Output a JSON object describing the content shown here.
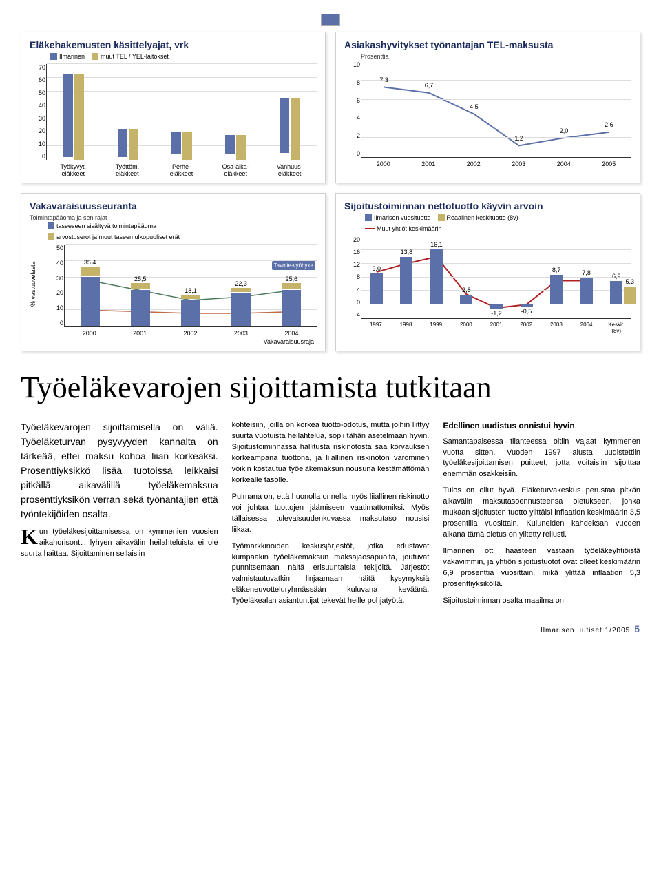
{
  "colors": {
    "primary": "#5b6fa8",
    "secondary": "#c5b36a",
    "accent1": "#c06a4a",
    "accent2": "#4a7a5a",
    "red": "#b02020",
    "grid": "#dddddd",
    "axis": "#333333",
    "title": "#1a2a5c"
  },
  "chart1": {
    "title": "Eläkehakemusten käsittelyajat, vrk",
    "type": "bar",
    "legend": [
      {
        "label": "Ilmarinen",
        "color": "#5b6fa8"
      },
      {
        "label": "muut TEL / YEL-laitokset",
        "color": "#c5b36a"
      }
    ],
    "ylim": [
      0,
      70
    ],
    "ytick_step": 10,
    "categories": [
      "Työkyvyt.\neläkkeet",
      "Työttöm.\neläkkeet",
      "Perhe-\neläkkeet",
      "Osa-aika-\neläkkeet",
      "Vanhuus-\neläkkeet"
    ],
    "series": [
      {
        "color": "#5b6fa8",
        "values": [
          60,
          20,
          16,
          14,
          40
        ]
      },
      {
        "color": "#c5b36a",
        "values": [
          62,
          22,
          20,
          18,
          45
        ]
      }
    ]
  },
  "chart2": {
    "title": "Asiakashyvitykset työnantajan TEL-maksusta",
    "type": "line",
    "ylabel": "Prosenttia",
    "ylim": [
      0,
      10
    ],
    "ytick_step": 2,
    "x": [
      "2000",
      "2001",
      "2002",
      "2003",
      "2004",
      "2005"
    ],
    "values": [
      7.3,
      6.7,
      4.5,
      1.2,
      2.0,
      2.6
    ],
    "line_color": "#5b6fa8",
    "value_labels": [
      "7,3",
      "6,7",
      "4,5",
      "1,2",
      "2,0",
      "2,6"
    ]
  },
  "chart3": {
    "title": "Vakavaraisuusseuranta",
    "subtitle": "Toimintapääoma ja sen rajat",
    "type": "bar+line",
    "ylabel": "% vastuuvelasta",
    "ylim": [
      0,
      50
    ],
    "ytick_step": 10,
    "x": [
      "2000",
      "2001",
      "2002",
      "2003",
      "2004"
    ],
    "legend": [
      {
        "label": "taseeseen sisältyvä toimintapääoma",
        "color": "#5b6fa8"
      },
      {
        "label": "arvostuserot ja muut taseen ulkopuoliset erät",
        "color": "#c5b36a"
      }
    ],
    "tavoite_label": "Tavoite-vyöhyke",
    "stacked": [
      {
        "blue": 30,
        "gold": 5.4,
        "label": "35,4"
      },
      {
        "blue": 22,
        "gold": 3.5,
        "label": "25,5"
      },
      {
        "blue": 16,
        "gold": 2.1,
        "label": "18,1"
      },
      {
        "blue": 20,
        "gold": 2.3,
        "label": "22,3"
      },
      {
        "blue": 22,
        "gold": 3.6,
        "label": "25,6"
      }
    ],
    "lines": [
      {
        "color": "#c06a4a",
        "label": "Vakavaraisuusraja",
        "values": [
          10,
          9,
          8,
          8,
          9
        ]
      },
      {
        "color": "#4a7a5a",
        "values": [
          28,
          22,
          16,
          18,
          22
        ]
      }
    ],
    "footer_label": "Vakavaraisuusraja"
  },
  "chart4": {
    "title": "Sijoitustoiminnan nettotuotto käyvin arvoin",
    "type": "bar+line",
    "ylim": [
      -4,
      20
    ],
    "ytick_step": 4,
    "x": [
      "1997",
      "1998",
      "1999",
      "2000",
      "2001",
      "2002",
      "2003",
      "2004",
      "Keskit.\n(8v)"
    ],
    "legend": [
      {
        "label": "Ilmarisen vuosituotto",
        "color": "#5b6fa8"
      },
      {
        "label": "Reaalinen keskituotto (8v)",
        "color": "#c5b36a"
      },
      {
        "label": "Muut yhtiöt keskimäärin",
        "color": "#b02020"
      }
    ],
    "bars_blue": [
      9.0,
      13.8,
      16.1,
      2.8,
      -1.2,
      -0.5,
      8.7,
      7.8,
      6.9
    ],
    "bars_gold": [
      null,
      null,
      null,
      null,
      null,
      null,
      null,
      null,
      5.3
    ],
    "bar_labels": [
      "9,0",
      "13,8",
      "16,1",
      "2,8",
      "-1,2",
      "-0,5",
      "8,7",
      "7,8",
      "6,9"
    ],
    "gold_label": "5,3",
    "line": {
      "color": "#b02020",
      "values": [
        9.5,
        12,
        14,
        3,
        -1,
        0,
        7,
        7,
        null
      ]
    }
  },
  "article": {
    "headline": "Työeläkevarojen sijoittamista tutkitaan",
    "intro": "Työeläkevarojen sijoittamisella on väliä. Työeläketurvan pysyvyyden kannalta on tärkeää, ettei maksu kohoa liian korkeaksi. Prosenttiyksikkö lisää tuotoissa leikkaisi pitkällä aikavälillä työeläkemaksua prosenttiyksikön verran sekä työnantajien että työntekijöiden osalta.",
    "col1_p1": "Kun työeläkesijoittamisessa on kymmenien vuosien aikahorisontti, lyhyen aikavälin heilahteluista ei ole suurta haittaa. Sijoittaminen sellaisiin",
    "col2_p1": "kohteisiin, joilla on korkea tuotto-odotus, mutta joihin liittyy suurta vuotuista heilahtelua, sopii tähän asetelmaan hyvin. Sijoitustoiminnassa hallitusta riskinotosta saa korvauksen korkeampana tuottona, ja liiallinen riskinoton varominen voikin kostautua työeläkemaksun nousuna kestämättömän korkealle tasolle.",
    "col2_p2": "Pulmana on, että huonolla onnella myös liiallinen riskinotto voi johtaa tuottojen jäämiseen vaatimattomiksi. Myös tällaisessa tulevaisuudenkuvassa maksutaso nousisi liikaa.",
    "col2_p3": "Työmarkkinoiden keskusjärjestöt, jotka edustavat kumpaakin työeläkemaksun maksajaosapuolta, joutuvat punnitsemaan näitä erisuuntaisia tekijöitä. Järjestöt valmistautuvatkin linjaamaan näitä kysymyksiä eläkeneuvotteluryhmässään kuluvana keväänä. Työeläkealan asiantuntijat tekevät heille pohjatyötä.",
    "col3_h": "Edellinen uudistus onnistui hyvin",
    "col3_p1": "Samantapaisessa tilanteessa oltiin vajaat kymmenen vuotta sitten. Vuoden 1997 alusta uudistettiin työeläkesijoittamisen puitteet, jotta voitaisiin sijoittaa enemmän osakkeisiin.",
    "col3_p2": "Tulos on ollut hyvä. Eläketurvakeskus perustaa pitkän aikavälin maksutasoennusteensa oletukseen, jonka mukaan sijoitusten tuotto ylittäisi inflaation keskimäärin 3,5 prosentilla vuosittain. Kuluneiden kahdeksan vuoden aikana tämä oletus on ylitetty reilusti.",
    "col3_p3": "Ilmarinen otti haasteen vastaan työeläkeyhtiöistä vakavimmin, ja yhtiön sijoitustuotot ovat olleet keskimäärin 6,9 prosenttia vuosittain, mikä ylittää inflaation 5,3 prosenttiyksiköllä.",
    "col3_p4": "Sijoitustoiminnan osalta maailma on"
  },
  "footer": {
    "text": "Ilmarisen uutiset 1/2005",
    "page": "5"
  }
}
